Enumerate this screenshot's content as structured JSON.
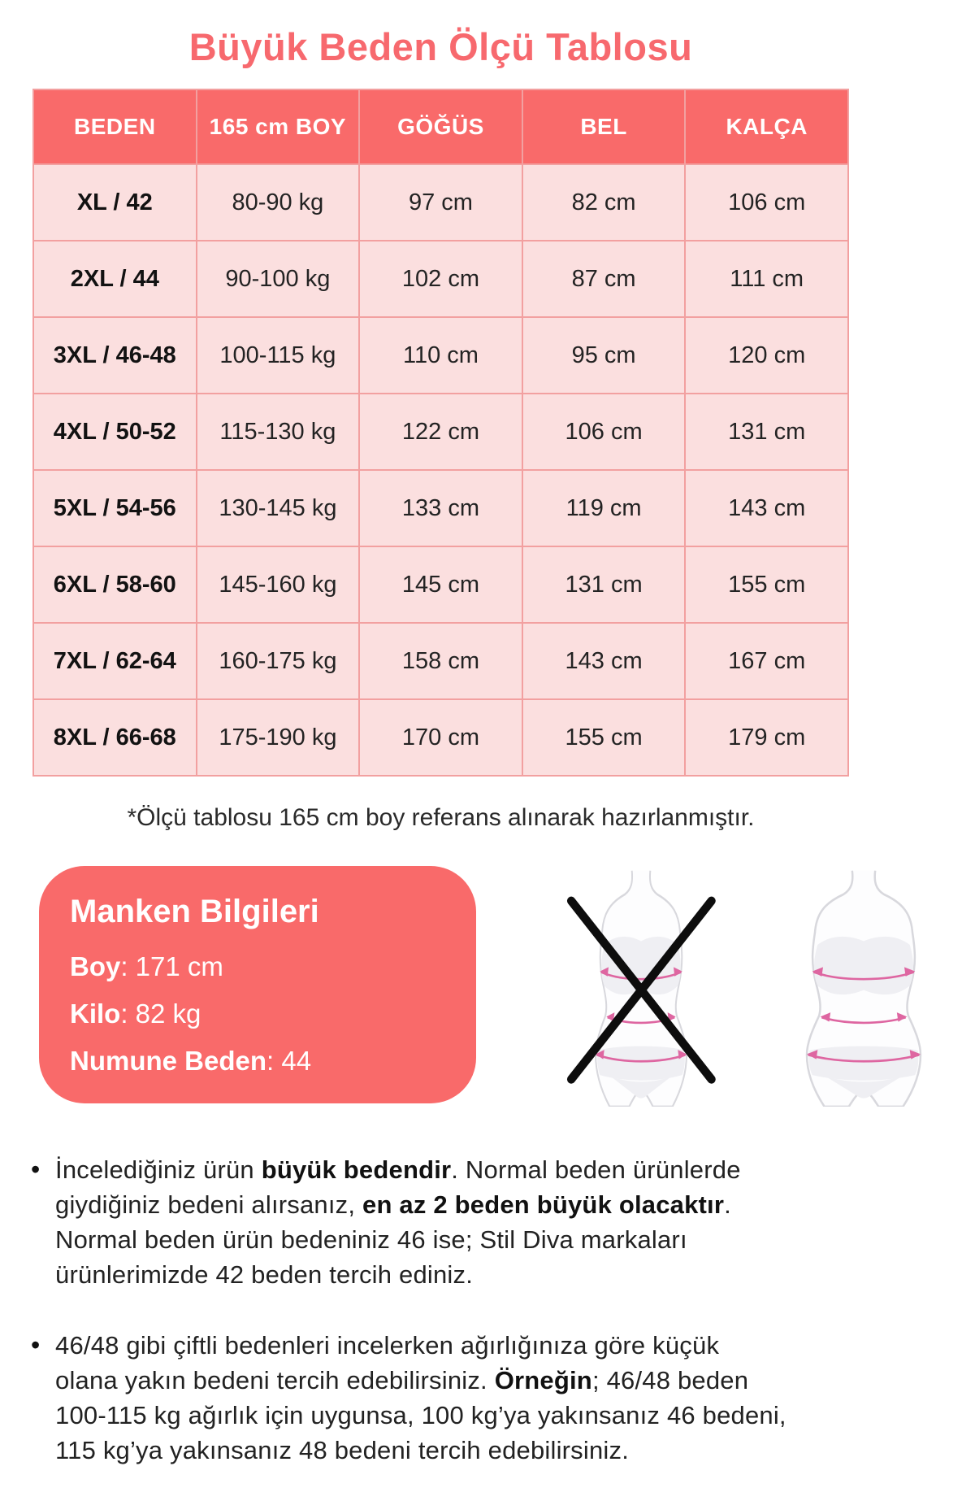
{
  "title": "Büyük Beden Ölçü Tablosu",
  "table": {
    "headers": [
      "BEDEN",
      "165 cm BOY",
      "GÖĞÜS",
      "BEL",
      "KALÇA"
    ],
    "rows": [
      [
        "XL / 42",
        "80-90 kg",
        "97 cm",
        "82 cm",
        "106 cm"
      ],
      [
        "2XL / 44",
        "90-100 kg",
        "102 cm",
        "87 cm",
        "111 cm"
      ],
      [
        "3XL / 46-48",
        "100-115 kg",
        "110 cm",
        "95 cm",
        "120 cm"
      ],
      [
        "4XL / 50-52",
        "115-130 kg",
        "122 cm",
        "106 cm",
        "131 cm"
      ],
      [
        "5XL / 54-56",
        "130-145 kg",
        "133 cm",
        "119 cm",
        "143 cm"
      ],
      [
        "6XL / 58-60",
        "145-160 kg",
        "145 cm",
        "131 cm",
        "155 cm"
      ],
      [
        "7XL / 62-64",
        "160-175 kg",
        "158 cm",
        "143 cm",
        "167 cm"
      ],
      [
        "8XL / 66-68",
        "175-190 kg",
        "170 cm",
        "155 cm",
        "179 cm"
      ]
    ]
  },
  "note": "*Ölçü tablosu 165 cm boy referans alınarak hazırlanmıştır.",
  "model_info": {
    "title": "Manken Bilgileri",
    "fields": [
      {
        "label": "Boy",
        "value": ": 171 cm"
      },
      {
        "label": "Kilo",
        "value": ": 82 kg"
      },
      {
        "label": "Numune Beden",
        "value": ": 44"
      }
    ]
  },
  "bullet_char": "•",
  "bullets": [
    [
      [
        {
          "t": "İncelediğiniz ürün "
        },
        {
          "t": "büyük bedendir",
          "b": 1
        },
        {
          "t": ". Normal beden ürünlerde"
        }
      ],
      [
        {
          "t": "giydiğiniz bedeni alırsanız, "
        },
        {
          "t": "en az 2 beden büyük olacaktır",
          "b": 1
        },
        {
          "t": "."
        }
      ],
      [
        {
          "t": "Normal beden ürün bedeniniz 46 ise; Stil Diva markaları"
        }
      ],
      [
        {
          "t": "ürünlerimizde 42 beden tercih ediniz."
        }
      ]
    ],
    [
      [
        {
          "t": "46/48 gibi çiftli bedenleri incelerken ağırlığınıza göre küçük"
        }
      ],
      [
        {
          "t": "olana yakın bedeni tercih edebilirsiniz. "
        },
        {
          "t": "Örneğin",
          "b": 1
        },
        {
          "t": "; 46/48 beden"
        }
      ],
      [
        {
          "t": "100-115 kg ağırlık için uygunsa, 100 kg’ya yakınsanız 46 bedeni,"
        }
      ],
      [
        {
          "t": "115 kg’ya yakınsanız 48 bedeni tercih edebilirsiniz."
        }
      ]
    ]
  ],
  "colors": {
    "coral": "#F96A6A",
    "coral_title": "#F7696E",
    "row_pink": "#FBDFDF",
    "border_pink": "#F2A0A0",
    "measure_pink": "#DE66A1",
    "silhouette_gray": "#D8D8DD",
    "shade_gray": "#EFEFF3",
    "cross_black": "#0D0D0D"
  }
}
